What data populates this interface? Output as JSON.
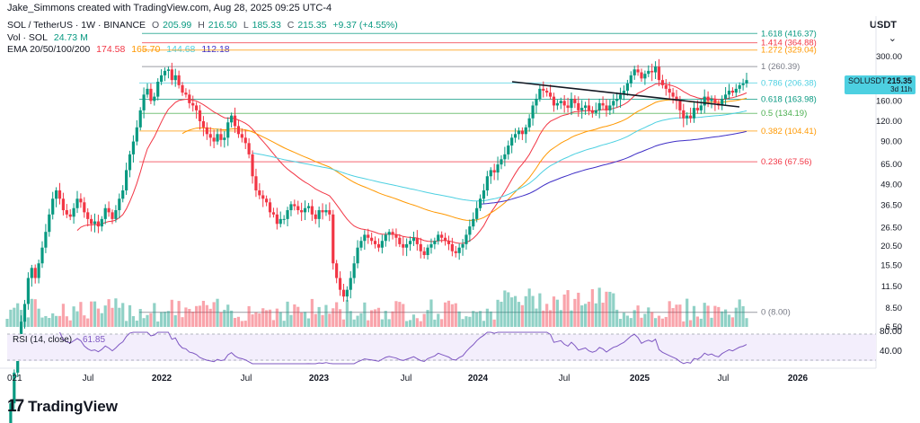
{
  "credit": "Jake_Simmons created with TradingView.com, Aug 28, 2025 09:25 UTC-4",
  "quote_currency": "USDT",
  "legend": {
    "symbol": "SOL / TetherUS · 1W · BINANCE",
    "o_label": "O",
    "o": "205.99",
    "h_label": "H",
    "h": "216.50",
    "l_label": "L",
    "l": "185.33",
    "c_label": "C",
    "c": "215.35",
    "change": "+9.37 (+4.55%)",
    "vol_label": "Vol · SOL",
    "vol": "24.73 M",
    "ema_label": "EMA 20/50/100/200",
    "ema": [
      "174.58",
      "165.70",
      "144.68",
      "112.18"
    ]
  },
  "colors": {
    "up": "#089981",
    "down": "#f23645",
    "ema20": "#f23645",
    "ema50": "#ff9800",
    "ema100": "#4dd0e1",
    "ema200": "#3f2fc6",
    "rsi": "#7e57c2"
  },
  "rsi": {
    "label": "RSI (14, close)",
    "value": "61.85",
    "levels": [
      "80.00",
      "40.00"
    ]
  },
  "footer_brand": "TradingView",
  "price_tag": {
    "symbol": "SOLUSDT",
    "price": "215.35",
    "countdown": "3d 11h"
  },
  "chart_data": {
    "type": "candlestick",
    "scale": "log",
    "x_ticks": [
      "021",
      "Jul",
      "2022",
      "Jul",
      "2023",
      "Jul",
      "2024",
      "Jul",
      "2025",
      "Jul",
      "2026"
    ],
    "y_ticks": [
      "300.00",
      "220.00",
      "160.00",
      "120.00",
      "90.00",
      "65.00",
      "49.00",
      "36.50",
      "26.50",
      "20.50",
      "15.50",
      "11.50",
      "8.50",
      "6.50"
    ],
    "y_tick_values": [
      300,
      220,
      160,
      120,
      90,
      65,
      49,
      36.5,
      26.5,
      20.5,
      15.5,
      11.5,
      8.5,
      6.5
    ],
    "fib_levels": [
      {
        "ratio": "1.618",
        "value": "416.37",
        "price": 416.37,
        "color": "#089981"
      },
      {
        "ratio": "1.414",
        "value": "364.88",
        "price": 364.88,
        "color": "#f23645"
      },
      {
        "ratio": "1.272",
        "value": "329.04",
        "price": 329.04,
        "color": "#ff9800"
      },
      {
        "ratio": "1",
        "value": "260.39",
        "price": 260.39,
        "color": "#787b86"
      },
      {
        "ratio": "0.786",
        "value": "206.38",
        "price": 206.38,
        "color": "#4dd0e1"
      },
      {
        "ratio": "0.618",
        "value": "163.98",
        "price": 163.98,
        "color": "#089981"
      },
      {
        "ratio": "0.5",
        "value": "134.19",
        "price": 134.19,
        "color": "#4caf50"
      },
      {
        "ratio": "0.382",
        "value": "104.41",
        "price": 104.41,
        "color": "#ff9800"
      },
      {
        "ratio": "0.236",
        "value": "67.56",
        "price": 67.56,
        "color": "#f23645"
      },
      {
        "ratio": "0",
        "value": "8.00",
        "price": 8.0,
        "color": "#787b86"
      }
    ],
    "price_path_weekly_close": [
      1.5,
      2.2,
      3.4,
      4.5,
      7,
      9,
      13,
      15,
      13,
      16,
      20,
      25,
      32,
      40,
      45,
      40,
      34,
      32,
      31,
      35,
      40,
      38,
      33,
      30,
      28,
      29,
      27,
      30,
      35,
      33,
      30,
      34,
      40,
      45,
      60,
      75,
      90,
      110,
      140,
      175,
      190,
      160,
      170,
      210,
      230,
      245,
      250,
      215,
      230,
      200,
      180,
      175,
      155,
      150,
      140,
      120,
      110,
      100,
      95,
      90,
      100,
      92,
      95,
      118,
      130,
      112,
      100,
      95,
      88,
      75,
      55,
      45,
      42,
      40,
      38,
      33,
      32,
      28,
      30,
      30,
      34,
      37,
      36,
      34,
      33,
      35,
      36,
      32,
      30,
      34,
      33,
      34,
      32,
      16,
      13,
      11,
      10,
      11,
      13,
      16,
      20,
      22,
      24,
      23,
      22,
      21,
      20,
      22,
      24,
      25,
      24,
      23,
      21,
      20,
      21,
      22,
      23,
      21,
      19,
      18,
      20,
      21,
      22,
      24,
      23,
      22,
      21,
      19,
      18.5,
      20,
      21,
      24,
      27,
      30,
      35,
      40,
      45,
      55,
      60,
      58,
      65,
      70,
      75,
      85,
      95,
      100,
      105,
      100,
      110,
      125,
      150,
      165,
      190,
      185,
      180,
      170,
      150,
      155,
      160,
      150,
      145,
      165,
      155,
      140,
      145,
      150,
      140,
      135,
      140,
      155,
      150,
      140,
      150,
      160,
      165,
      175,
      185,
      205,
      230,
      250,
      240,
      220,
      235,
      245,
      240,
      260,
      215,
      200,
      190,
      180,
      170,
      160,
      140,
      125,
      130,
      125,
      145,
      140,
      150,
      170,
      160,
      165,
      155,
      150,
      165,
      175,
      185,
      180,
      190,
      200,
      205,
      215
    ]
  }
}
